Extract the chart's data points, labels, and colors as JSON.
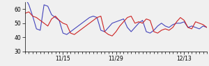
{
  "blue_y": [
    68,
    63,
    55,
    46,
    45,
    63,
    62,
    56,
    54,
    52,
    43,
    42,
    44,
    46,
    48,
    50,
    52,
    54,
    55,
    54,
    45,
    44,
    47,
    50,
    51,
    52,
    53,
    47,
    44,
    47,
    50,
    52,
    44,
    43,
    45,
    48,
    50,
    48,
    47,
    49,
    50,
    50,
    51,
    47,
    48,
    47,
    46,
    48,
    47
  ],
  "red_y": [
    57,
    58,
    55,
    54,
    52,
    50,
    48,
    53,
    55,
    52,
    50,
    49,
    43,
    42,
    44,
    46,
    48,
    50,
    52,
    54,
    55,
    44,
    42,
    41,
    44,
    48,
    51,
    54,
    55,
    50,
    51,
    50,
    53,
    52,
    44,
    43,
    45,
    46,
    45,
    47,
    51,
    54,
    52,
    47,
    46,
    51,
    50,
    49,
    47
  ],
  "ylim": [
    30,
    65
  ],
  "yticks": [
    30,
    40,
    50,
    60
  ],
  "xtick_labels": [
    "11/15",
    "11/29",
    "12/13"
  ],
  "xtick_positions": [
    10,
    24,
    42
  ],
  "n_points": 49,
  "blue_color": "#4444bb",
  "red_color": "#cc2222",
  "bg_color": "#f0f0f0",
  "linewidth": 0.8,
  "tick_fontsize": 5.5,
  "minor_xtick_positions": [
    0,
    1,
    2,
    3,
    4,
    5,
    6,
    7,
    8,
    9,
    10,
    11,
    12,
    13,
    14,
    15,
    16,
    17,
    18,
    19,
    20,
    21,
    22,
    23,
    24,
    25,
    26,
    27,
    28,
    29,
    30,
    31,
    32,
    33,
    34,
    35,
    36,
    37,
    38,
    39,
    40,
    41,
    42,
    43,
    44,
    45,
    46,
    47,
    48
  ]
}
